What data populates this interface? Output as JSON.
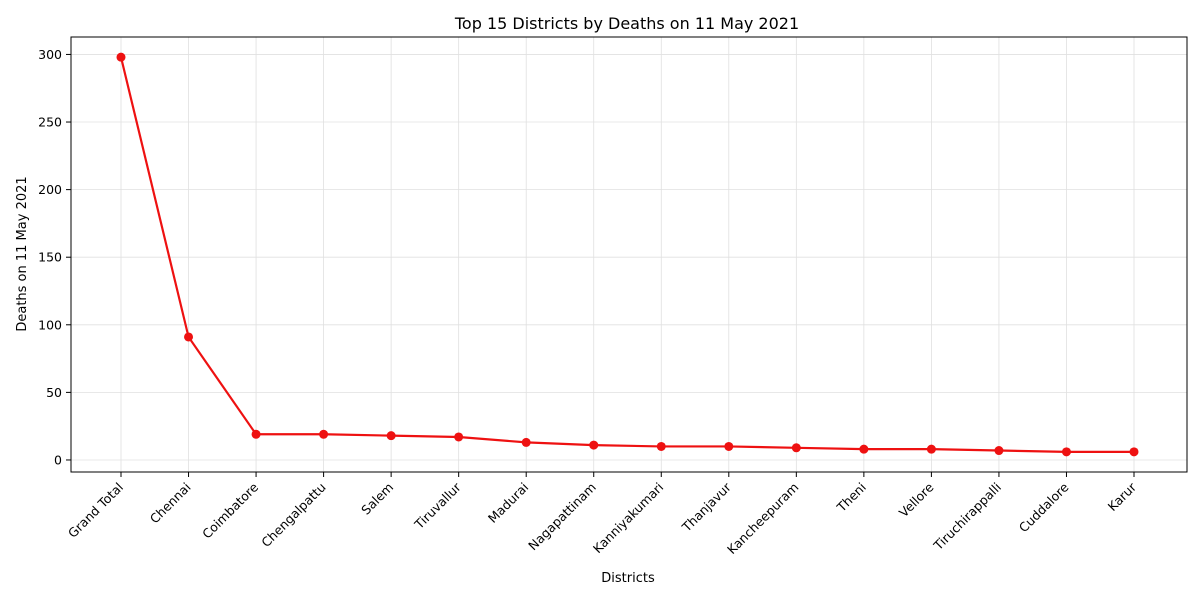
{
  "chart_data": {
    "type": "line",
    "title": "Top 15 Districts by Deaths on 11 May 2021",
    "xlabel": "Districts",
    "ylabel": "Deaths on 11 May 2021",
    "categories": [
      "Grand Total",
      "Chennai",
      "Coimbatore",
      "Chengalpattu",
      "Salem",
      "Tiruvallur",
      "Madurai",
      "Nagapattinam",
      "Kanniyakumari",
      "Thanjavur",
      "Kancheepuram",
      "Theni",
      "Vellore",
      "Tiruchirappalli",
      "Cuddalore",
      "Karur"
    ],
    "series": [
      {
        "values": [
          298,
          91,
          19,
          19,
          18,
          17,
          13,
          11,
          10,
          10,
          9,
          8,
          8,
          7,
          6,
          6
        ]
      }
    ],
    "ylim": [
      -8.9,
      312.9
    ],
    "yticks": [
      0,
      50,
      100,
      150,
      200,
      250,
      300
    ],
    "grid": true,
    "color": "#ee1111",
    "marker": "circle"
  }
}
